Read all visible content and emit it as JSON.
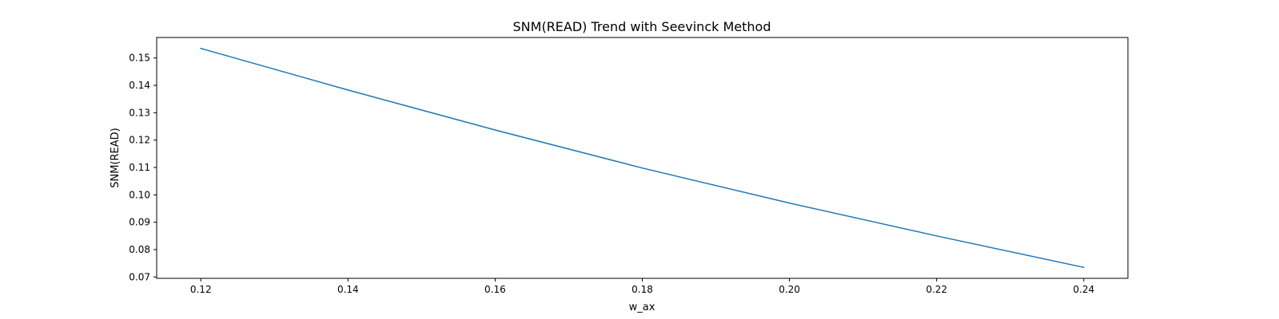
{
  "chart_data": {
    "type": "line",
    "title": "SNM(READ) Trend with Seevinck Method",
    "xlabel": "w_ax",
    "ylabel": "SNM(READ)",
    "xlim": [
      0.114,
      0.246
    ],
    "ylim": [
      0.0695,
      0.1575
    ],
    "xticks": [
      0.12,
      0.14,
      0.16,
      0.18,
      0.2,
      0.22,
      0.24
    ],
    "xtick_labels": [
      "0.12",
      "0.14",
      "0.16",
      "0.18",
      "0.20",
      "0.22",
      "0.24"
    ],
    "yticks": [
      0.07,
      0.08,
      0.09,
      0.1,
      0.11,
      0.12,
      0.13,
      0.14,
      0.15
    ],
    "ytick_labels": [
      "0.07",
      "0.08",
      "0.09",
      "0.10",
      "0.11",
      "0.12",
      "0.13",
      "0.14",
      "0.15"
    ],
    "grid": false,
    "series": [
      {
        "color": "#1f77b4",
        "x": [
          0.12,
          0.14,
          0.16,
          0.18,
          0.2,
          0.22,
          0.24
        ],
        "y": [
          0.1535,
          0.1383,
          0.1237,
          0.1098,
          0.097,
          0.085,
          0.0735
        ]
      }
    ]
  }
}
